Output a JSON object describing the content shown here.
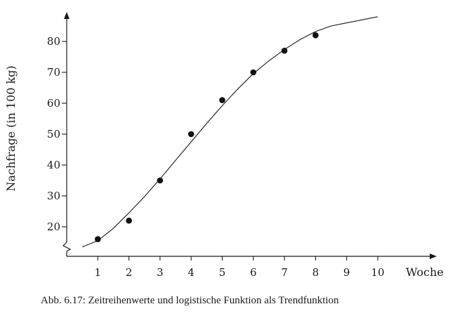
{
  "caption": "Abb. 6.17: Zeitreihenwerte und logistische Funktion als Trendfunktion",
  "chart_data": {
    "type": "scatter",
    "title": "",
    "xlabel": "Woche",
    "ylabel": "Nachfrage (in 100 kg)",
    "x_ticks": [
      1,
      2,
      3,
      4,
      5,
      6,
      7,
      8,
      9,
      10
    ],
    "y_ticks": [
      20,
      30,
      40,
      50,
      60,
      70,
      80
    ],
    "xlim": [
      0,
      10.5
    ],
    "ylim": [
      11,
      88
    ],
    "y_axis_break": true,
    "grid": false,
    "legend": "none",
    "series": [
      {
        "type": "scatter",
        "x": [
          1,
          2,
          3,
          4,
          5,
          6,
          7,
          8
        ],
        "y": [
          16,
          22,
          35,
          50,
          61,
          70,
          77,
          82
        ]
      },
      {
        "type": "line",
        "x": [
          0.5,
          1,
          1.5,
          2,
          2.5,
          3,
          3.5,
          4,
          4.5,
          5,
          5.5,
          6,
          6.5,
          7,
          7.5,
          8,
          8.5,
          9,
          9.5,
          10
        ],
        "y": [
          13.5,
          15.5,
          19.5,
          24.5,
          29.8,
          35.5,
          41.5,
          47.5,
          53.5,
          59.2,
          64.6,
          69.6,
          73.7,
          77.4,
          80.6,
          83.2,
          85.0,
          86.0,
          87.0,
          88.0
        ]
      }
    ]
  }
}
